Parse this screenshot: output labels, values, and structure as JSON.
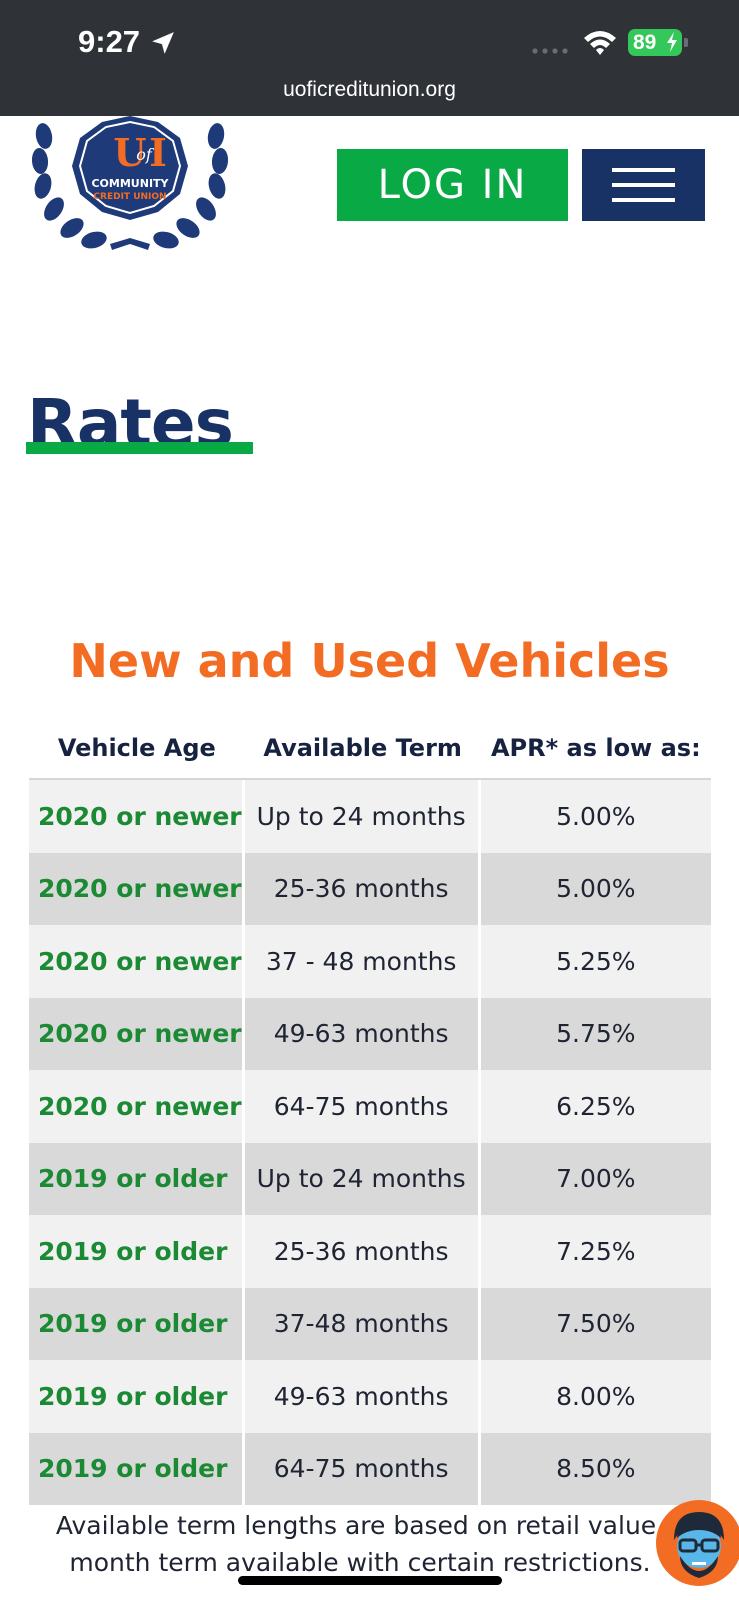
{
  "status_bar": {
    "time": "9:27",
    "battery": "89",
    "url": "uoficreditunion.org",
    "icons": [
      "location-arrow-icon",
      "cell-signal-icon",
      "wifi-icon",
      "battery-charging-icon"
    ]
  },
  "header": {
    "logo_text": [
      "U of I",
      "COMMUNITY",
      "CREDIT UNION"
    ],
    "login_label": "LOG IN",
    "menu_icon": "hamburger-menu-icon"
  },
  "page": {
    "title": "Rates"
  },
  "section": {
    "heading": "New and Used Vehicles"
  },
  "table": {
    "headers": [
      "Vehicle Age",
      "Available Term",
      "APR* as low as:"
    ],
    "rows": [
      {
        "age": "2020 or newer",
        "term": "Up to 24 months",
        "apr": "5.00%"
      },
      {
        "age": "2020 or newer",
        "term": "25-36 months",
        "apr": "5.00%"
      },
      {
        "age": "2020 or newer",
        "term": "37 - 48 months",
        "apr": "5.25%"
      },
      {
        "age": "2020 or newer",
        "term": "49-63 months",
        "apr": "5.75%"
      },
      {
        "age": "2020 or newer",
        "term": "64-75 months",
        "apr": "6.25%"
      },
      {
        "age": "2019 or older",
        "term": "Up to 24 months",
        "apr": "7.00%"
      },
      {
        "age": "2019 or older",
        "term": "25-36 months",
        "apr": "7.25%"
      },
      {
        "age": "2019 or older",
        "term": "37-48 months",
        "apr": "7.50%"
      },
      {
        "age": "2019 or older",
        "term": "49-63 months",
        "apr": "8.00%"
      },
      {
        "age": "2019 or older",
        "term": "64-75 months",
        "apr": "8.50%"
      }
    ]
  },
  "footnote": {
    "line1": "Available term lengths are based on retail value.",
    "line2": "month term available with certain restrictions."
  },
  "chat": {
    "icon": "chat-avatar-icon"
  },
  "colors": {
    "status_bar": "#2f3236",
    "navy": "#183266",
    "green": "#09a945",
    "orange": "#f26c23",
    "age_green": "#1c8a34",
    "row_light": "#f1f1f1",
    "row_dark": "#d9d9d9"
  }
}
